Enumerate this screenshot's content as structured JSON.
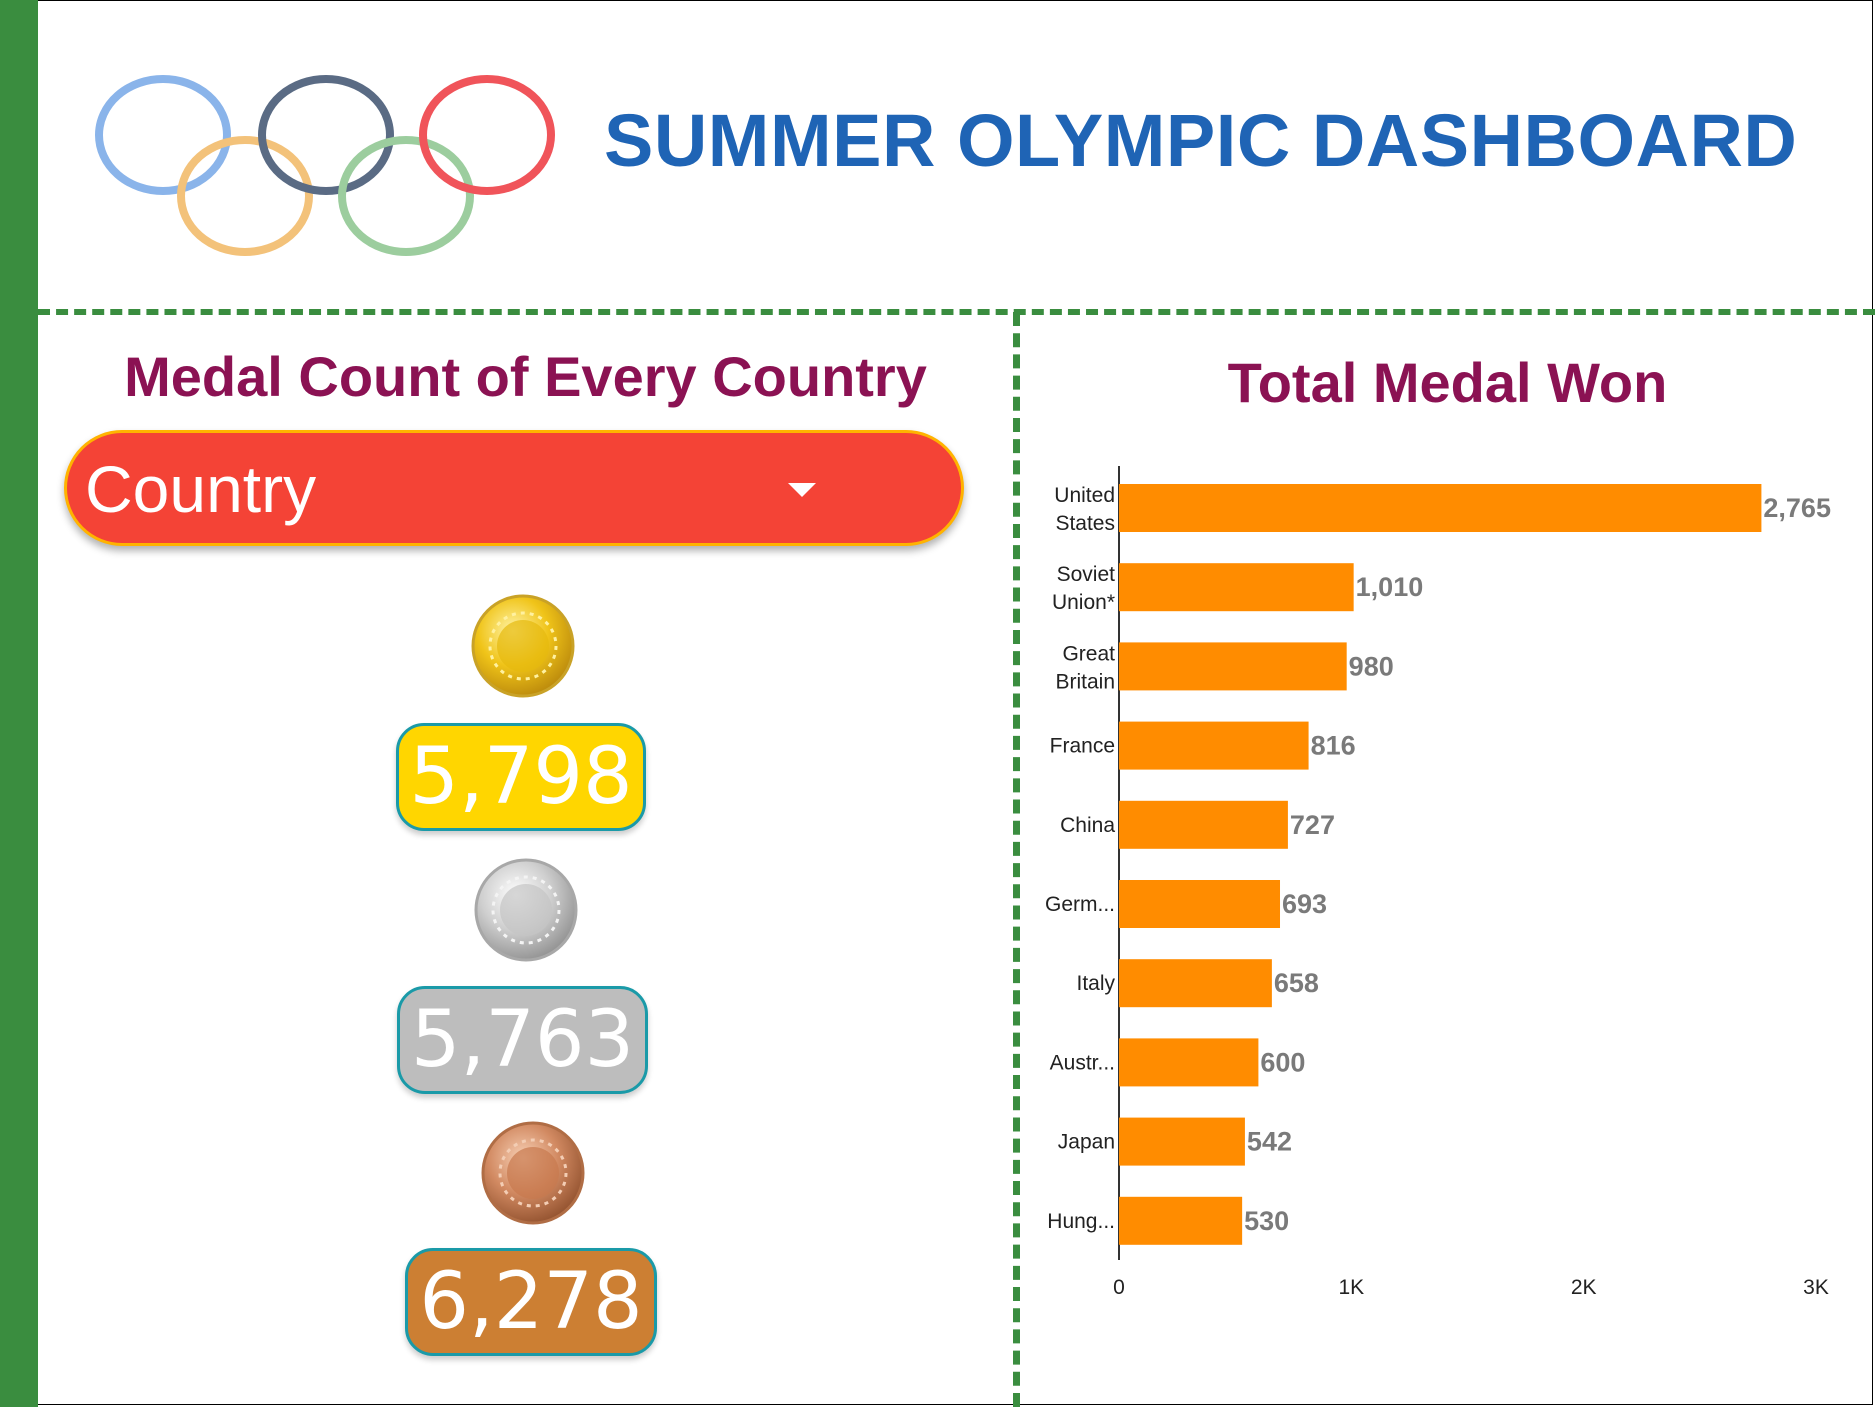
{
  "header": {
    "title": "SUMMER OLYMPIC DASHBOARD",
    "ring_colors": [
      "#8ab4ea",
      "#5a6b84",
      "#f0545a",
      "#f3c27a",
      "#9ccd9e"
    ]
  },
  "left_panel": {
    "title": "Medal Count of Every Country",
    "filter": {
      "label": "Country",
      "icon": "chevron-down-icon"
    },
    "medals": {
      "gold": {
        "count": "5,798",
        "color": "#ffd600",
        "icon": "gold-medal-icon"
      },
      "silver": {
        "count": "5,763",
        "color": "#bdbdbd",
        "icon": "silver-medal-icon"
      },
      "bronze": {
        "count": "6,278",
        "color": "#cc7f33",
        "icon": "bronze-medal-icon"
      }
    }
  },
  "chart_data": {
    "type": "bar",
    "orientation": "horizontal",
    "title": "Total Medal Won",
    "categories": [
      [
        "United",
        "States"
      ],
      [
        "Soviet",
        "Union*"
      ],
      [
        "Great",
        "Britain"
      ],
      [
        "France"
      ],
      [
        "China"
      ],
      [
        "Germ..."
      ],
      [
        "Italy"
      ],
      [
        "Austr..."
      ],
      [
        "Japan"
      ],
      [
        "Hung..."
      ]
    ],
    "values": [
      2765,
      1010,
      980,
      816,
      727,
      693,
      658,
      600,
      542,
      530
    ],
    "value_labels": [
      "2,765",
      "1,010",
      "980",
      "816",
      "727",
      "693",
      "658",
      "600",
      "542",
      "530"
    ],
    "xlim": [
      0,
      3000
    ],
    "xticks": [
      0,
      1000,
      2000,
      3000
    ],
    "xtick_labels": [
      "0",
      "1K",
      "2K",
      "3K"
    ],
    "bar_color": "#ff8c00",
    "grid": false,
    "legend": "none"
  }
}
